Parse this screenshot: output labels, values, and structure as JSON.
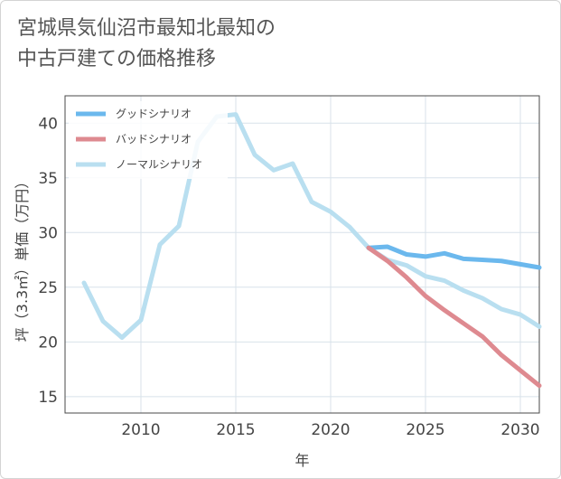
{
  "chart_title": "宮城県気仙沼市最知北最知の\n中古戸建ての価格推移",
  "chart_data": {
    "type": "line",
    "title": "宮城県気仙沼市最知北最知の\n中古戸建ての価格推移",
    "xlabel": "年",
    "ylabel": "坪（3.3㎡）単価（万円）",
    "xlim": [
      2006,
      2031
    ],
    "ylim": [
      13.5,
      42.5
    ],
    "xticks": [
      2010,
      2015,
      2020,
      2025,
      2030
    ],
    "yticks": [
      15,
      20,
      25,
      30,
      35,
      40
    ],
    "grid": true,
    "legend_position": "top-left",
    "series": [
      {
        "name": "グッドシナリオ",
        "color": "#6bb8ed",
        "x": [
          2022,
          2023,
          2024,
          2025,
          2026,
          2027,
          2028,
          2029,
          2030,
          2031
        ],
        "y": [
          28.6,
          28.7,
          28.0,
          27.8,
          28.1,
          27.6,
          27.5,
          27.4,
          27.1,
          26.8
        ]
      },
      {
        "name": "バッドシナリオ",
        "color": "#de8a90",
        "x": [
          2022,
          2023,
          2024,
          2025,
          2026,
          2027,
          2028,
          2029,
          2030,
          2031
        ],
        "y": [
          28.6,
          27.4,
          25.9,
          24.2,
          22.9,
          21.7,
          20.5,
          18.8,
          17.4,
          16.0
        ]
      },
      {
        "name": "ノーマルシナリオ",
        "color": "#b9dff0",
        "x": [
          2007,
          2008,
          2009,
          2010,
          2011,
          2012,
          2013,
          2014,
          2015,
          2016,
          2017,
          2018,
          2019,
          2020,
          2021,
          2022,
          2023,
          2024,
          2025,
          2026,
          2027,
          2028,
          2029,
          2030,
          2031
        ],
        "y": [
          25.4,
          21.9,
          20.4,
          22.0,
          28.9,
          30.6,
          38.3,
          40.6,
          40.8,
          37.1,
          35.7,
          36.3,
          32.8,
          31.9,
          30.5,
          28.6,
          27.5,
          27.0,
          26.0,
          25.6,
          24.7,
          24.0,
          23.0,
          22.5,
          21.4
        ]
      }
    ]
  }
}
